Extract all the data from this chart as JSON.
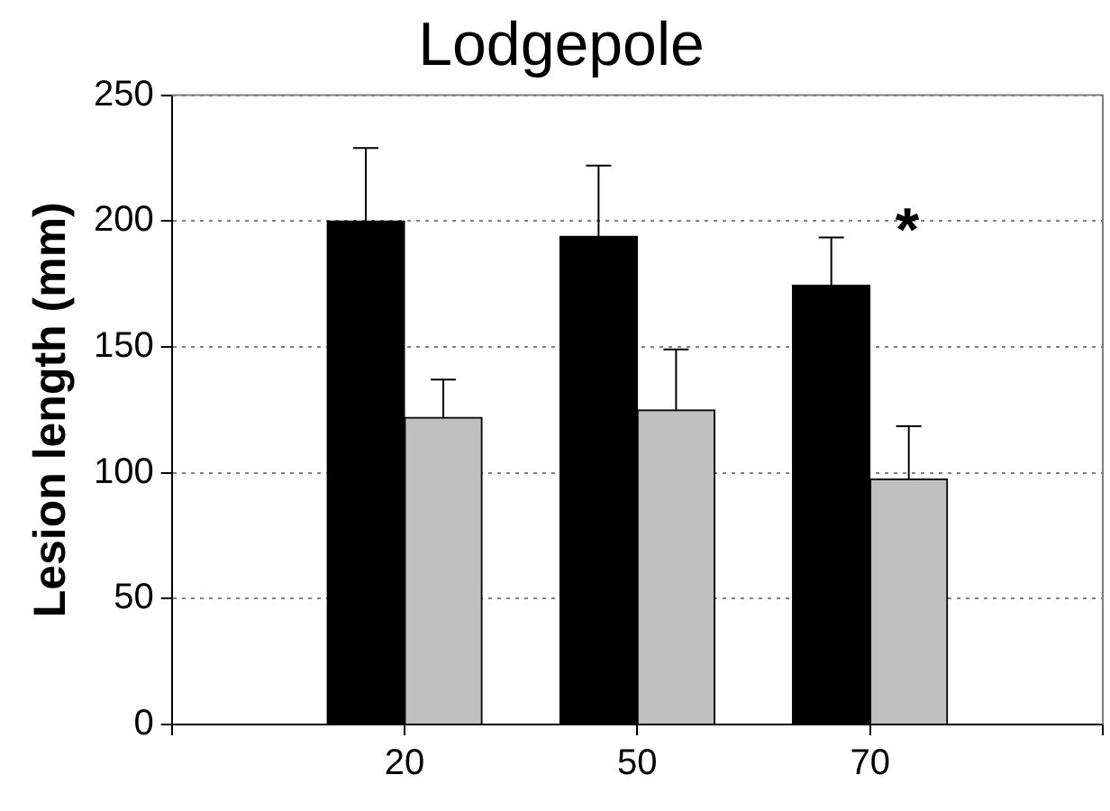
{
  "chart_data": {
    "type": "bar",
    "title": "Lodgepole",
    "ylabel": "Lesion length (mm)",
    "categories": [
      null,
      "20",
      "50",
      "70",
      null
    ],
    "series": [
      {
        "color": "#000000",
        "values": [
          null,
          200,
          194,
          174.5,
          null
        ],
        "errors": [
          null,
          29,
          28,
          19,
          null
        ]
      },
      {
        "color": "#c0c0c0",
        "values": [
          null,
          122,
          125,
          97.5,
          null
        ],
        "errors": [
          null,
          15,
          24,
          21,
          null
        ]
      }
    ],
    "ylim": [
      0,
      250
    ],
    "yticks": [
      0,
      50,
      100,
      150,
      200,
      250
    ],
    "grid": "y",
    "legend": false,
    "annotations": [
      "*"
    ]
  }
}
